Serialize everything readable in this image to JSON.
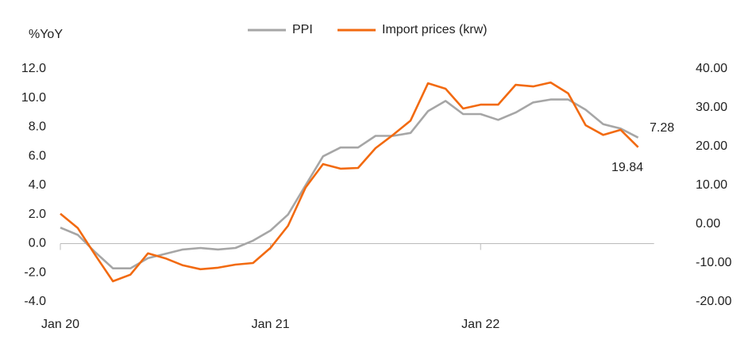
{
  "chart_data": {
    "type": "line",
    "ylabel": "%YoY",
    "categories": [
      "Jan 20",
      null,
      null,
      null,
      null,
      null,
      null,
      null,
      null,
      null,
      null,
      null,
      "Jan 21",
      null,
      null,
      null,
      null,
      null,
      null,
      null,
      null,
      null,
      null,
      null,
      "Jan 22",
      null,
      null,
      null,
      null,
      null,
      null,
      null,
      null,
      null
    ],
    "series": [
      {
        "name": "PPI",
        "color": "#a6a6a6",
        "axis": "y",
        "values": [
          1.1,
          0.6,
          -0.6,
          -1.7,
          -1.7,
          -1.0,
          -0.7,
          -0.4,
          -0.3,
          -0.4,
          -0.3,
          0.2,
          0.9,
          2.0,
          4.0,
          6.0,
          6.6,
          6.6,
          7.4,
          7.4,
          7.6,
          9.1,
          9.8,
          8.9,
          8.9,
          8.5,
          9.0,
          9.7,
          9.9,
          9.9,
          9.2,
          8.2,
          7.9,
          7.28
        ]
      },
      {
        "name": "Import prices (krw)",
        "color": "#f26a10",
        "axis": "y2",
        "values": [
          2.7,
          -1,
          -8,
          -14.7,
          -13,
          -7.5,
          -8.8,
          -10.6,
          -11.6,
          -11.2,
          -10.4,
          -10,
          -6.1,
          -0.4,
          9.4,
          15.5,
          14.3,
          14.5,
          19.6,
          23,
          26.7,
          36.3,
          34.9,
          29.8,
          30.8,
          30.8,
          35.9,
          35.5,
          36.5,
          33.7,
          25.5,
          23,
          24.3,
          19.84
        ]
      }
    ],
    "ylim": [
      -4,
      12
    ],
    "yticks": [
      {
        "value": -4,
        "label": "-4.0"
      },
      {
        "value": -2,
        "label": "-2.0"
      },
      {
        "value": 0,
        "label": "0.0"
      },
      {
        "value": 2,
        "label": "2.0"
      },
      {
        "value": 4,
        "label": "4.0"
      },
      {
        "value": 6,
        "label": "6.0"
      },
      {
        "value": 8,
        "label": "8.0"
      },
      {
        "value": 10,
        "label": "10.0"
      },
      {
        "value": 12,
        "label": "12.0"
      }
    ],
    "y2lim": [
      -20,
      40
    ],
    "y2ticks": [
      {
        "value": -20,
        "label": "-20.00"
      },
      {
        "value": -10,
        "label": "-10.00"
      },
      {
        "value": 0,
        "label": "0.00"
      },
      {
        "value": 10,
        "label": "10.00"
      },
      {
        "value": 20,
        "label": "20.00"
      },
      {
        "value": 30,
        "label": "30.00"
      },
      {
        "value": 40,
        "label": "40.00"
      }
    ],
    "legend": "top"
  }
}
